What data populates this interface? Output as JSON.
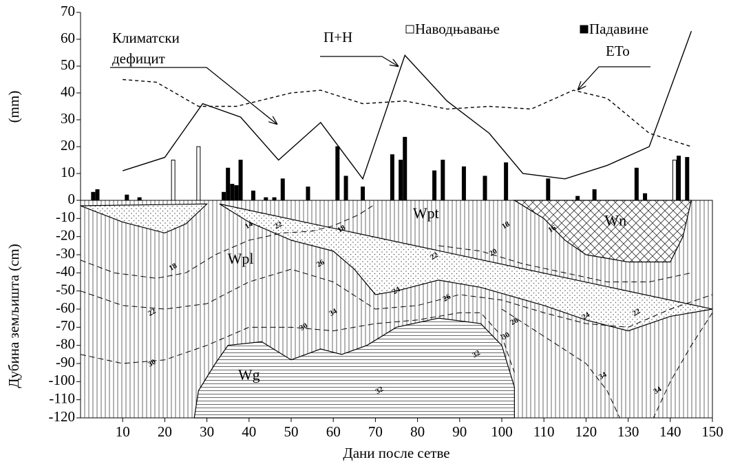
{
  "chart_data": [
    {
      "type": "bar-line",
      "xlim": [
        0,
        150
      ],
      "xticks": [
        10,
        20,
        30,
        40,
        50,
        60,
        70,
        80,
        90,
        100,
        110,
        120,
        130,
        140,
        150
      ],
      "xlabel": "Дани после сетве",
      "ylabel": "(mm)",
      "ylim": [
        0,
        70
      ],
      "yticks": [
        0,
        10,
        20,
        30,
        40,
        50,
        60,
        70
      ],
      "legend": "top-right",
      "series": [
        {
          "name": "Наводњавање",
          "color": "#ffffff",
          "x": [
            22,
            28,
            141
          ],
          "values": [
            15,
            20,
            15
          ]
        },
        {
          "name": "Падавине",
          "color": "#000000",
          "x": [
            3,
            4,
            11,
            14,
            34,
            35,
            36,
            37,
            38,
            41,
            44,
            46,
            48,
            54,
            61,
            63,
            67,
            74,
            76,
            77,
            84,
            86,
            91,
            96,
            101,
            111,
            118,
            122,
            132,
            134,
            142,
            144
          ],
          "values": [
            3,
            4,
            2,
            1,
            3,
            12,
            6,
            5.5,
            15,
            3.5,
            1,
            1,
            8,
            5,
            20,
            9,
            5,
            17,
            15,
            23.5,
            11,
            15,
            12.5,
            9,
            14,
            8,
            1.5,
            4,
            12,
            2.5,
            16.5,
            16
          ]
        }
      ],
      "lines": [
        {
          "name": "П+Н",
          "dash": "none",
          "x": [
            10,
            20,
            29,
            38,
            47,
            57,
            67,
            77,
            87,
            97,
            105,
            115,
            125,
            135,
            145
          ],
          "values": [
            11,
            16,
            36,
            31,
            15,
            29,
            8,
            54,
            37,
            25,
            10,
            8,
            13,
            20,
            63
          ]
        },
        {
          "name": "ETo",
          "dash": "5,4",
          "x": [
            10,
            18,
            28,
            37,
            50,
            57,
            67,
            77,
            87,
            97,
            107,
            117,
            125,
            135,
            145
          ],
          "values": [
            45,
            44,
            35,
            35,
            40,
            41,
            36,
            37,
            34,
            35,
            34,
            41,
            38,
            25,
            20
          ]
        }
      ],
      "deficit_label": [
        "Климатски",
        "дефицит"
      ]
    },
    {
      "type": "contour",
      "xlim": [
        0,
        150
      ],
      "ylabel": "Дубина земљишта (cm)",
      "ylim": [
        -120,
        0
      ],
      "yticks": [
        -10,
        -20,
        -30,
        -40,
        -50,
        -60,
        -70,
        -80,
        -90,
        -100,
        -110,
        -120
      ],
      "zone_names": [
        "Wpt",
        "Wn",
        "Wpl",
        "Wg"
      ],
      "zones": [
        {
          "pattern": "dots",
          "x": [
            0,
            10,
            20,
            25,
            30
          ],
          "y": [
            -3,
            -12,
            -18,
            -13,
            -2
          ]
        },
        {
          "pattern": "dots",
          "x": [
            33,
            40,
            50,
            60,
            65,
            70,
            75,
            85,
            95,
            110,
            120,
            130,
            140,
            150
          ],
          "y": [
            -2,
            -12,
            -22,
            -28,
            -38,
            -52,
            -50,
            -44,
            -48,
            -58,
            -66,
            -72,
            -64,
            -60
          ]
        },
        {
          "pattern": "cross",
          "x": [
            103,
            110,
            115,
            120,
            130,
            140,
            143,
            145
          ],
          "y": [
            0,
            -10,
            -22,
            -30,
            -34,
            -34,
            -20,
            0
          ]
        },
        {
          "pattern": "hlines",
          "x": [
            27,
            28,
            32,
            35,
            43,
            50,
            57,
            62,
            68,
            75,
            85,
            95,
            100,
            103,
            103
          ],
          "y": [
            -120,
            -105,
            -90,
            -80,
            -78,
            -88,
            -82,
            -85,
            -80,
            -70,
            -65,
            -68,
            -80,
            -103,
            -120
          ]
        }
      ],
      "contours": [
        {
          "x": [
            0,
            8,
            18,
            25,
            32,
            40,
            48,
            55,
            60,
            66,
            70
          ],
          "y": [
            -33,
            -40,
            -43,
            -40,
            -30,
            -22,
            -18,
            -17,
            -14,
            -8,
            -2
          ]
        },
        {
          "x": [
            0,
            10,
            20,
            30,
            40,
            50,
            60,
            70,
            80,
            90,
            100,
            110,
            120,
            130,
            140,
            150
          ],
          "y": [
            -50,
            -58,
            -60,
            -57,
            -45,
            -38,
            -45,
            -60,
            -58,
            -52,
            -55,
            -62,
            -68,
            -70,
            -60,
            -52
          ]
        },
        {
          "x": [
            0,
            10,
            20,
            30,
            40,
            50,
            60,
            70,
            80,
            90,
            95,
            100,
            103
          ],
          "y": [
            -85,
            -90,
            -88,
            -80,
            -70,
            -70,
            -72,
            -68,
            -66,
            -62,
            -62,
            -75,
            -95
          ]
        },
        {
          "x": [
            100,
            110,
            120,
            125,
            128
          ],
          "y": [
            -60,
            -75,
            -90,
            -105,
            -120
          ]
        },
        {
          "x": [
            150,
            145,
            140,
            136
          ],
          "y": [
            -62,
            -80,
            -100,
            -120
          ]
        },
        {
          "x": [
            85,
            95,
            105,
            115,
            125,
            135,
            145
          ],
          "y": [
            -25,
            -28,
            -35,
            -40,
            -45,
            -45,
            -40
          ]
        }
      ],
      "contour_labels": [
        {
          "value": 18,
          "x": 22,
          "y": -37
        },
        {
          "value": 22,
          "x": 17,
          "y": -62
        },
        {
          "value": 30,
          "x": 17,
          "y": -90
        },
        {
          "value": 14,
          "x": 40,
          "y": -14
        },
        {
          "value": 22,
          "x": 47,
          "y": -14
        },
        {
          "value": 18,
          "x": 62,
          "y": -16
        },
        {
          "value": 26,
          "x": 57,
          "y": -35
        },
        {
          "value": 34,
          "x": 60,
          "y": -62
        },
        {
          "value": 30,
          "x": 53,
          "y": -70
        },
        {
          "value": 22,
          "x": 84,
          "y": -31
        },
        {
          "value": 26,
          "x": 87,
          "y": -54
        },
        {
          "value": 24,
          "x": 75,
          "y": -50
        },
        {
          "value": 18,
          "x": 101,
          "y": -14
        },
        {
          "value": 16,
          "x": 112,
          "y": -16
        },
        {
          "value": 20,
          "x": 98,
          "y": -29
        },
        {
          "value": 28,
          "x": 103,
          "y": -67
        },
        {
          "value": 24,
          "x": 120,
          "y": -64
        },
        {
          "value": 22,
          "x": 132,
          "y": -62
        },
        {
          "value": 30,
          "x": 101,
          "y": -75
        },
        {
          "value": 32,
          "x": 94,
          "y": -85
        },
        {
          "value": 32,
          "x": 71,
          "y": -105
        },
        {
          "value": 34,
          "x": 124,
          "y": -97
        },
        {
          "value": 34,
          "x": 137,
          "y": -105
        }
      ]
    }
  ]
}
